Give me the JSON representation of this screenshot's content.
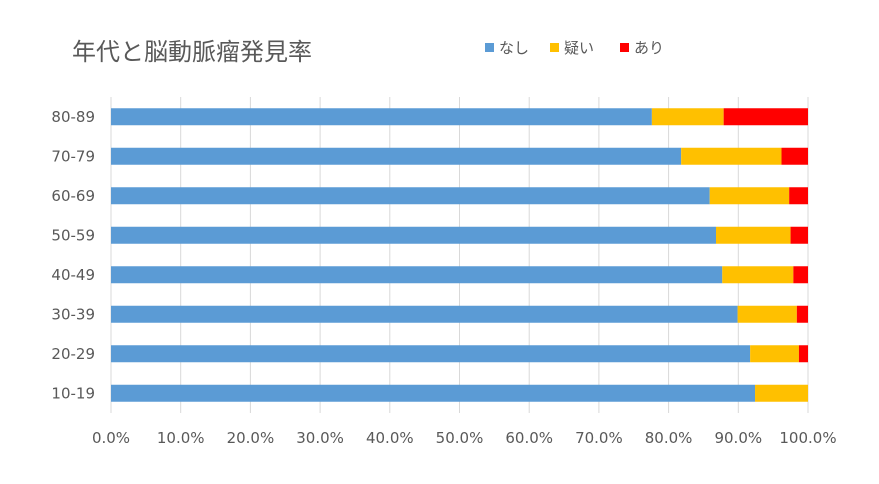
{
  "chart_data": {
    "type": "bar",
    "orientation": "horizontal",
    "stacked": true,
    "title": "年代と脳動脈瘤発見率",
    "xlabel": "",
    "ylabel": "",
    "xlim": [
      0,
      100
    ],
    "x_ticks": [
      "0.0%",
      "10.0%",
      "20.0%",
      "30.0%",
      "40.0%",
      "50.0%",
      "60.0%",
      "70.0%",
      "80.0%",
      "90.0%",
      "100.0%"
    ],
    "grid": true,
    "legend_position": "top",
    "categories": [
      "10-19",
      "20-29",
      "30-39",
      "40-49",
      "50-59",
      "60-69",
      "70-79",
      "80-89"
    ],
    "series": [
      {
        "name": "なし",
        "color": "#5b9bd5",
        "values": [
          92.4,
          91.7,
          89.9,
          87.7,
          86.8,
          85.9,
          81.8,
          77.6
        ]
      },
      {
        "name": "疑い",
        "color": "#ffc000",
        "values": [
          7.6,
          7.0,
          8.5,
          10.2,
          10.7,
          11.4,
          14.4,
          10.3
        ]
      },
      {
        "name": "あり",
        "color": "#ff0000",
        "values": [
          0.0,
          1.3,
          1.6,
          2.1,
          2.5,
          2.7,
          3.8,
          12.1
        ]
      }
    ]
  }
}
